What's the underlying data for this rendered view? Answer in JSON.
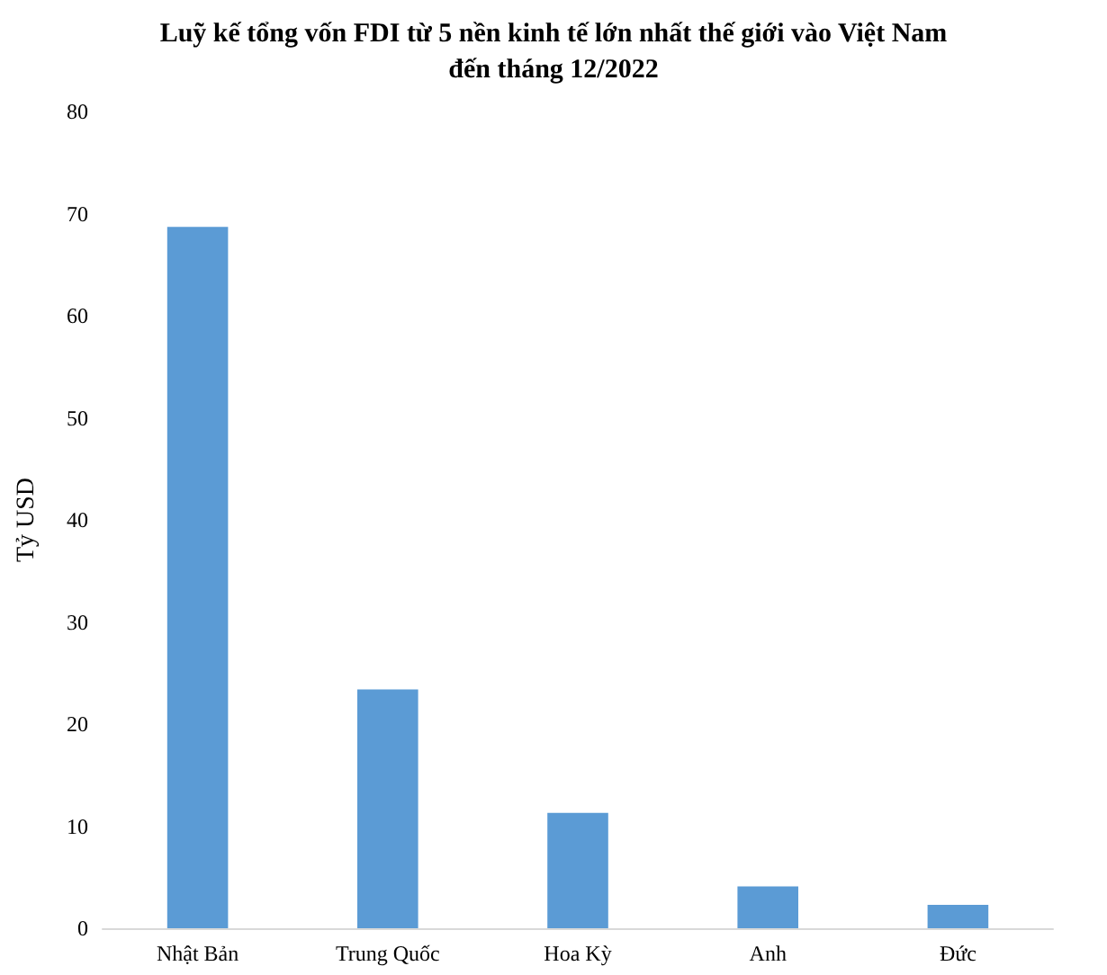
{
  "chart_data": {
    "type": "bar",
    "title": "Luỹ kế tổng vốn FDI từ 5 nền kinh tế lớn nhất thế giới vào Việt Nam\nđến tháng 12/2022",
    "ylabel": "Tỷ USD",
    "categories": [
      "Nhật Bản",
      "Trung Quốc",
      "Hoa Kỳ",
      "Anh",
      "Đức"
    ],
    "values": [
      68.7,
      23.4,
      11.3,
      4.1,
      2.3
    ],
    "color": "#5b9bd5",
    "ylim": [
      0,
      80
    ],
    "yticks": [
      0,
      10,
      20,
      30,
      40,
      50,
      60,
      70,
      80
    ],
    "grid": false
  }
}
